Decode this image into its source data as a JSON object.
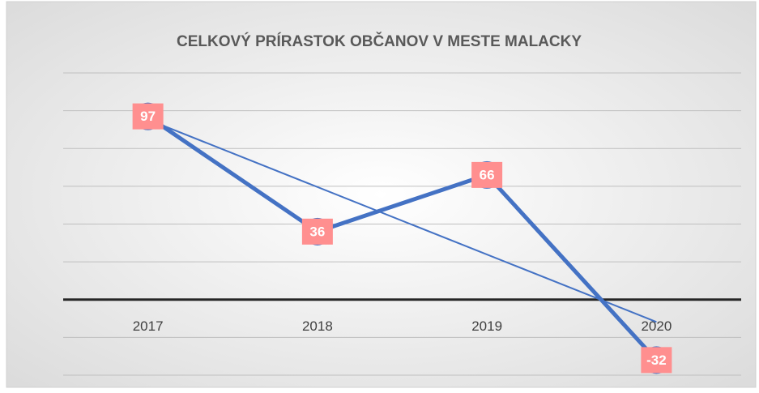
{
  "chart_data": {
    "type": "line",
    "title": "CELKOVÝ PRÍRASTOK OBČANOV V MESTE MALACKY",
    "categories": [
      "2017",
      "2018",
      "2019",
      "2020"
    ],
    "series": [
      {
        "color": "#4472c4",
        "values": [
          97,
          36,
          66,
          -32
        ]
      }
    ],
    "ylim": [
      -40,
      120
    ],
    "yticks": [
      -40,
      -20,
      0,
      20,
      40,
      60,
      80,
      100,
      120
    ],
    "grid": true,
    "trendline": true,
    "label_color": "#ff8f8f"
  }
}
